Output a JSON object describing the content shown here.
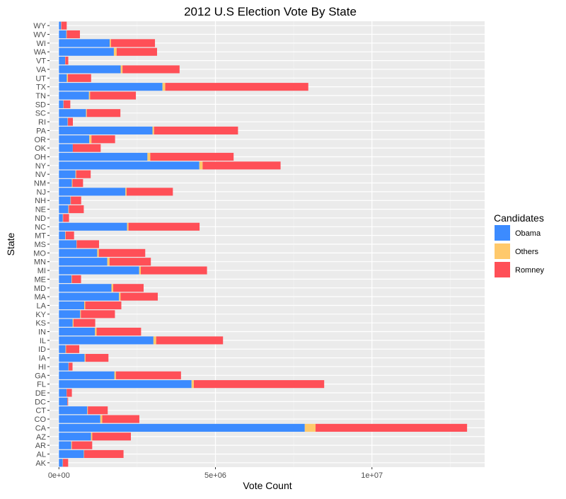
{
  "chart_data": {
    "type": "bar",
    "orientation": "horizontal",
    "stacked": true,
    "title": "2012 U.S Election Vote By State",
    "xlabel": "Vote Count",
    "ylabel": "State",
    "xlim": [
      -300000,
      13600000
    ],
    "xticks": [
      0,
      5000000,
      10000000
    ],
    "xtick_labels": [
      "0e+00",
      "5e+06",
      "1e+07"
    ],
    "grid": true,
    "legend_position": "right",
    "legend_title": "Candidates",
    "categories": [
      "AK",
      "AL",
      "AR",
      "AZ",
      "CA",
      "CO",
      "CT",
      "DC",
      "DE",
      "FL",
      "GA",
      "HI",
      "IA",
      "ID",
      "IL",
      "IN",
      "KS",
      "KY",
      "LA",
      "MA",
      "MD",
      "ME",
      "MI",
      "MN",
      "MO",
      "MS",
      "MT",
      "NC",
      "ND",
      "NE",
      "NH",
      "NJ",
      "NM",
      "NV",
      "NY",
      "OH",
      "OK",
      "OR",
      "PA",
      "RI",
      "SC",
      "SD",
      "TN",
      "TX",
      "UT",
      "VA",
      "VT",
      "WA",
      "WI",
      "WV",
      "WY"
    ],
    "series": [
      {
        "name": "Obama",
        "color": "#3c8bff",
        "values": [
          122640,
          795696,
          394409,
          1025232,
          7854285,
          1323101,
          905083,
          267070,
          242584,
          4237756,
          1773827,
          306658,
          822544,
          212787,
          3019512,
          1152887,
          440726,
          679370,
          809141,
          1921290,
          1677844,
          401306,
          2564569,
          1546167,
          1223796,
          562949,
          201839,
          2178391,
          124966,
          302081,
          369561,
          2125101,
          415335,
          531373,
          4485741,
          2827709,
          443547,
          970488,
          2990274,
          279677,
          865941,
          145039,
          960709,
          3308124,
          251813,
          1971820,
          199239,
          1755396,
          1620985,
          238269,
          69286
        ]
      },
      {
        "name": "Others",
        "color": "#ffc96b",
        "values": [
          7392,
          12328,
          21589,
          40368,
          344304,
          61177,
          18985,
          5313,
          5853,
          72976,
          47535,
          7024,
          29019,
          16892,
          87286,
          51104,
          26611,
          22662,
          32662,
          47938,
          56373,
          13932,
          51136,
          70169,
          51087,
          8123,
          14166,
          44515,
          9637,
          17234,
          11493,
          37623,
          19569,
          19978,
          104987,
          91701,
          0,
          69304,
          50440,
          9165,
          26532,
          8166,
          35538,
          88580,
          36621,
          60147,
          7353,
          88818,
          39483,
          14787,
          8813
        ]
      },
      {
        "name": "Romney",
        "color": "#ff4f57",
        "values": [
          164676,
          1255925,
          647744,
          1233654,
          4839958,
          1185243,
          634892,
          21381,
          165484,
          4163447,
          2078688,
          121015,
          730617,
          420911,
          2135216,
          1420543,
          692634,
          1087190,
          1152262,
          1188314,
          971869,
          292276,
          2115256,
          1320225,
          1482440,
          710746,
          267928,
          2270395,
          188163,
          475064,
          329918,
          1477568,
          335788,
          463567,
          2490431,
          2661437,
          891325,
          754175,
          2680434,
          157204,
          1071645,
          210610,
          1462330,
          4569843,
          740600,
          1822522,
          92698,
          1290670,
          1407966,
          417655,
          170962
        ]
      }
    ]
  }
}
